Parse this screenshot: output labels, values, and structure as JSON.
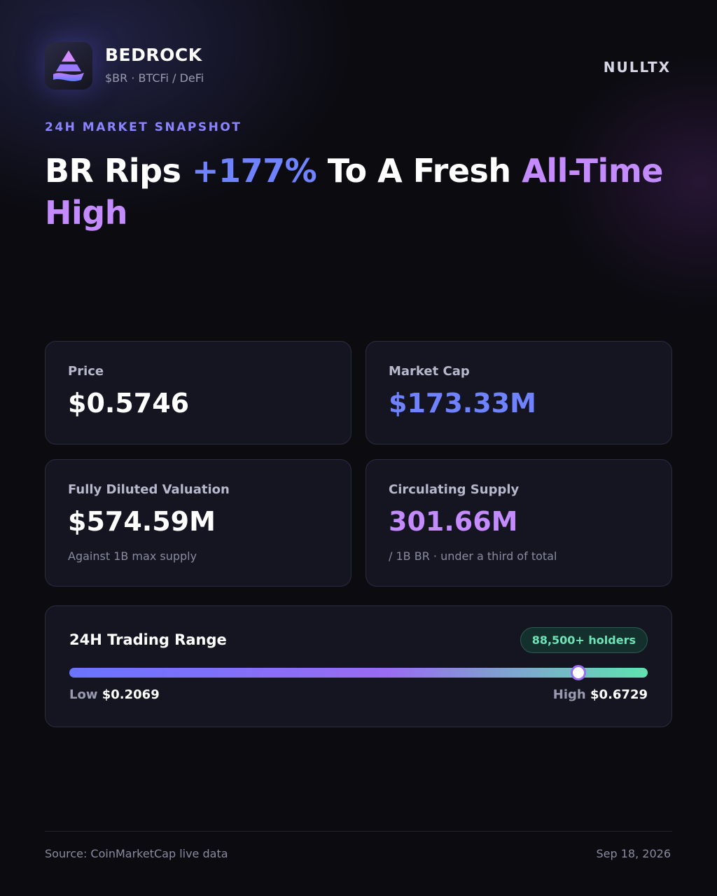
{
  "brand": {
    "name": "BEDROCK",
    "tagline": "$BR · BTCFi / DeFi"
  },
  "publisher": "NULLTX",
  "eyebrow": "24H MARKET SNAPSHOT",
  "headline": {
    "parts": [
      "BR Rips",
      "+177%",
      "To A Fresh",
      "All-Time High"
    ]
  },
  "stats": [
    {
      "label": "Price",
      "value": "$0.5746"
    },
    {
      "label": "Market Cap",
      "value": "$173.33M"
    },
    {
      "label": "Fully Diluted Valuation",
      "value": "$574.59M",
      "note": "Against 1B max supply"
    },
    {
      "label": "Circulating Supply",
      "value": "301.66M",
      "note": "/ 1B BR · under a third of total"
    }
  ],
  "range": {
    "title": "24H Trading Range",
    "badge": "88,500+ holders",
    "low": {
      "label": "Low",
      "value": "$0.2069"
    },
    "high": {
      "label": "High",
      "value": "$0.6729"
    }
  },
  "footer": {
    "source": "Source: CoinMarketCap live data",
    "date": "Sep 18, 2026"
  }
}
